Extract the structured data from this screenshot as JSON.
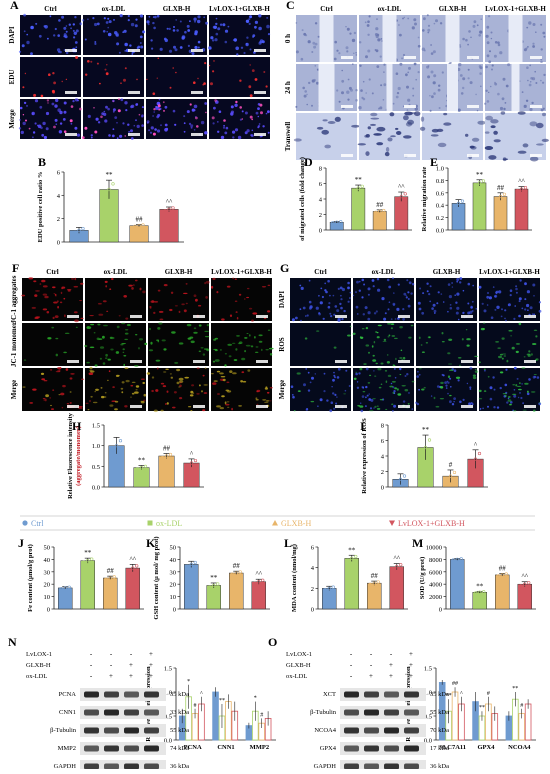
{
  "colors": {
    "ctrl": "#6f9bd0",
    "oxldl": "#a8d26a",
    "glxb": "#e8b56a",
    "lvlox": "#d2565f",
    "gelR": "#6e1010",
    "gelB": "#0f1a5a",
    "fluor_green": "#28a828"
  },
  "groups": [
    "Ctrl",
    "ox-LDL",
    "GLXB-H",
    "LvLOX-1+GLXB-H"
  ],
  "panels": {
    "A": {
      "letter": "A",
      "rows": [
        "DAPI",
        "EDU",
        "Merge"
      ]
    },
    "C": {
      "letter": "C",
      "rows": [
        "0 h",
        "24 h",
        "Transwell"
      ]
    },
    "F": {
      "letter": "F",
      "rows": [
        "JC-1 aggregates",
        "JC-1 monomer",
        "Merge"
      ]
    },
    "G": {
      "letter": "G",
      "rows": [
        "DAPI",
        "ROS",
        "Merge"
      ]
    },
    "N": {
      "letter": "N",
      "treatments": [
        "LvLOX-1",
        "GLXB-H",
        "ox-LDL"
      ],
      "signs": [
        [
          "-",
          "-",
          "-",
          "+"
        ],
        [
          "-",
          "-",
          "+",
          "+"
        ],
        [
          "-",
          "+",
          "+",
          "+"
        ]
      ],
      "bands": [
        {
          "name": "PCNA",
          "kda": "35 kDa"
        },
        {
          "name": "CNN1",
          "kda": "33 kDa"
        },
        {
          "name": "β-Tubulin",
          "kda": "55 kDa"
        },
        {
          "name": "MMP2",
          "kda": "74 kDa"
        },
        {
          "name": "GAPDH",
          "kda": "36 kDa"
        }
      ]
    },
    "O": {
      "letter": "O",
      "treatments": [
        "LvLOX-1",
        "GLXB-H",
        "ox-LDL"
      ],
      "signs": [
        [
          "-",
          "-",
          "-",
          "+"
        ],
        [
          "-",
          "-",
          "+",
          "+"
        ],
        [
          "-",
          "+",
          "+",
          "+"
        ]
      ],
      "bands": [
        {
          "name": "XCT",
          "kda": "35 kDa"
        },
        {
          "name": "β-Tubulin",
          "kda": "55 kDa"
        },
        {
          "name": "NCOA4",
          "kda": "70 kDa"
        },
        {
          "name": "GPX4",
          "kda": "17 kDa"
        },
        {
          "name": "GAPDH",
          "kda": "36 kDa"
        }
      ]
    }
  },
  "scale_label": "100 μm",
  "legend": [
    "Ctrl",
    "ox-LDL",
    "GLXB-H",
    "LvLOX-1+GLXB-H"
  ],
  "chart_data": [
    {
      "id": "B",
      "letter": "B",
      "type": "bar",
      "ylabel": "EDU positive cell ratio %",
      "yticks": [
        "0",
        "2",
        "4",
        "6"
      ],
      "ylim": [
        0,
        6
      ],
      "categories": [
        "Ctrl",
        "ox-LDL",
        "GLXB-H",
        "LvLOX-1+GLXB-H"
      ],
      "values": [
        1.0,
        4.5,
        1.4,
        2.8
      ],
      "errors": [
        0.25,
        0.8,
        0.1,
        0.2
      ],
      "marks": [
        "",
        "**",
        "##",
        "^^"
      ]
    },
    {
      "id": "D",
      "letter": "D",
      "type": "bar",
      "ylabel": "of migrated cells (fold change)",
      "yticks": [
        "0",
        "2",
        "4",
        "6",
        "8"
      ],
      "ylim": [
        0,
        8
      ],
      "categories": [
        "Ctrl",
        "ox-LDL",
        "GLXB-H",
        "LvLOX-1+GLXB-H"
      ],
      "values": [
        1.0,
        5.4,
        2.4,
        4.3
      ],
      "errors": [
        0.1,
        0.4,
        0.2,
        0.6
      ],
      "marks": [
        "",
        "**",
        "##",
        "^^"
      ]
    },
    {
      "id": "E",
      "letter": "E",
      "type": "bar",
      "ylabel": "Relative migration rate",
      "yticks": [
        "0.0",
        "0.2",
        "0.4",
        "0.6",
        "0.8",
        "1.0"
      ],
      "ylim": [
        0,
        1
      ],
      "categories": [
        "Ctrl",
        "ox-LDL",
        "GLXB-H",
        "LvLOX-1+GLXB-H"
      ],
      "values": [
        0.43,
        0.76,
        0.54,
        0.66
      ],
      "errors": [
        0.06,
        0.05,
        0.06,
        0.04
      ],
      "marks": [
        "",
        "**",
        "##",
        "^^"
      ]
    },
    {
      "id": "H",
      "letter": "H",
      "type": "bar",
      "ylabel": "Relative Fluorescence intensity",
      "ylabel2": "(aggregate/monomer)",
      "yticks": [
        "0.0",
        "0.5",
        "1.0",
        "1.5"
      ],
      "ylim": [
        0,
        1.5
      ],
      "categories": [
        "Ctrl",
        "ox-LDL",
        "GLXB-H",
        "LvLOX-1+GLXB-H"
      ],
      "values": [
        1.0,
        0.47,
        0.75,
        0.58
      ],
      "errors": [
        0.2,
        0.05,
        0.06,
        0.1
      ],
      "marks": [
        "",
        "**",
        "##",
        "^"
      ]
    },
    {
      "id": "I",
      "letter": "I",
      "type": "bar",
      "ylabel": "Relative expression of ROS",
      "yticks": [
        "0",
        "2",
        "4",
        "6",
        "8"
      ],
      "ylim": [
        0,
        8
      ],
      "categories": [
        "Ctrl",
        "ox-LDL",
        "GLXB-H",
        "LvLOX-1+GLXB-H"
      ],
      "values": [
        1.0,
        5.1,
        1.4,
        3.6
      ],
      "errors": [
        0.7,
        1.6,
        0.8,
        1.2
      ],
      "marks": [
        "",
        "**",
        "#",
        "^"
      ]
    },
    {
      "id": "J",
      "letter": "J",
      "type": "bar",
      "ylabel": "Fe content (μmol/g prot)",
      "yticks": [
        "0",
        "10",
        "20",
        "30",
        "40",
        "50"
      ],
      "ylim": [
        0,
        50
      ],
      "categories": [
        "Ctrl",
        "ox-LDL",
        "GLXB-H",
        "LvLOX-1+GLXB-H"
      ],
      "values": [
        17,
        39,
        25,
        33
      ],
      "errors": [
        1,
        2,
        1.5,
        3
      ],
      "marks": [
        "",
        "**",
        "##",
        "^^"
      ]
    },
    {
      "id": "K",
      "letter": "K",
      "type": "bar",
      "ylabel": "GSH content (μ mol/ mg prot)",
      "yticks": [
        "0",
        "10",
        "20",
        "30",
        "40",
        "50"
      ],
      "ylim": [
        0,
        50
      ],
      "categories": [
        "Ctrl",
        "ox-LDL",
        "GLXB-H",
        "LvLOX-1+GLXB-H"
      ],
      "values": [
        36,
        19,
        29,
        22
      ],
      "errors": [
        2.5,
        2,
        1.5,
        2
      ],
      "marks": [
        "",
        "**",
        "##",
        "^^"
      ]
    },
    {
      "id": "L",
      "letter": "L",
      "type": "bar",
      "ylabel": "MDA content (nmol/mg)",
      "yticks": [
        "0",
        "2",
        "4",
        "6"
      ],
      "ylim": [
        0,
        6
      ],
      "categories": [
        "Ctrl",
        "ox-LDL",
        "GLXB-H",
        "LvLOX-1+GLXB-H"
      ],
      "values": [
        2.0,
        4.9,
        2.5,
        4.1
      ],
      "errors": [
        0.2,
        0.3,
        0.2,
        0.3
      ],
      "marks": [
        "",
        "**",
        "##",
        "^^"
      ]
    },
    {
      "id": "M",
      "letter": "M",
      "type": "bar",
      "ylabel": "SOD (U/g prot)",
      "yticks": [
        "0",
        "2000",
        "4000",
        "6000",
        "8000",
        "10000"
      ],
      "ylim": [
        0,
        10000
      ],
      "categories": [
        "Ctrl",
        "ox-LDL",
        "GLXB-H",
        "LvLOX-1+GLXB-H"
      ],
      "values": [
        8000,
        2700,
        5500,
        4000
      ],
      "errors": [
        150,
        150,
        250,
        400
      ],
      "marks": [
        "",
        "**",
        "##",
        "^^"
      ]
    },
    {
      "id": "N2",
      "type": "bar",
      "ylabel": "Relative protein expression",
      "yticks": [
        "0.0",
        "0.5",
        "1.0",
        "1.5"
      ],
      "ylim": [
        0,
        1.5
      ],
      "categories": [
        "PCNA",
        "CNN1",
        "MMP2"
      ],
      "series": [
        {
          "name": "Ctrl",
          "values": [
            0.5,
            1.0,
            0.3
          ]
        },
        {
          "name": "ox-LDL",
          "values": [
            0.9,
            0.5,
            0.6
          ]
        },
        {
          "name": "GLXB-H",
          "values": [
            0.55,
            0.8,
            0.35
          ]
        },
        {
          "name": "LvLOX-1+GLXB-H",
          "values": [
            0.75,
            0.6,
            0.45
          ]
        }
      ],
      "errors": [
        [
          0.15,
          0.1,
          0.06
        ],
        [
          0.25,
          0.25,
          0.2
        ],
        [
          0.1,
          0.15,
          0.1
        ],
        [
          0.15,
          0.2,
          0.15
        ]
      ],
      "marks": [
        [
          "",
          "",
          ""
        ],
        [
          "*",
          "**",
          "*"
        ],
        [
          "#",
          "",
          "#"
        ],
        [
          "^",
          "",
          ""
        ]
      ]
    },
    {
      "id": "O2",
      "type": "bar",
      "ylabel": "Relative protein expression",
      "yticks": [
        "0.0",
        "0.5",
        "1.0",
        "1.5"
      ],
      "ylim": [
        0,
        1.5
      ],
      "categories": [
        "SLC7A11",
        "GPX4",
        "NCOA4"
      ],
      "series": [
        {
          "name": "Ctrl",
          "values": [
            1.2,
            0.8,
            0.5
          ]
        },
        {
          "name": "ox-LDL",
          "values": [
            0.6,
            0.5,
            0.85
          ]
        },
        {
          "name": "GLXB-H",
          "values": [
            1.0,
            0.75,
            0.55
          ]
        },
        {
          "name": "LvLOX-1+GLXB-H",
          "values": [
            0.75,
            0.55,
            0.75
          ]
        }
      ],
      "errors": [
        [
          0.05,
          0.2,
          0.1
        ],
        [
          0.25,
          0.1,
          0.15
        ],
        [
          0.1,
          0.15,
          0.1
        ],
        [
          0.15,
          0.15,
          0.1
        ]
      ],
      "marks": [
        [
          "",
          "",
          ""
        ],
        [
          "**",
          "**",
          "**"
        ],
        [
          "##",
          "#",
          "#"
        ],
        [
          "^",
          "",
          ""
        ]
      ]
    }
  ]
}
